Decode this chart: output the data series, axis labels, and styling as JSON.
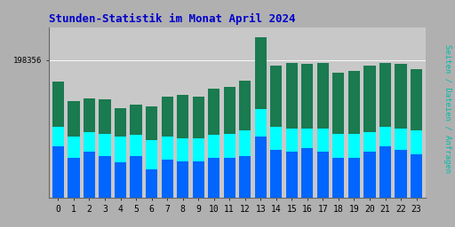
{
  "title": "Stunden-Statistik im Monat April 2024",
  "ylabel_right": "Seiten / Dateien / Anfragen",
  "ytick_label": "198356",
  "hours": [
    0,
    1,
    2,
    3,
    4,
    5,
    6,
    7,
    8,
    9,
    10,
    11,
    12,
    13,
    14,
    15,
    16,
    17,
    18,
    19,
    20,
    21,
    22,
    23
  ],
  "seiten": [
    0.72,
    0.6,
    0.62,
    0.61,
    0.56,
    0.58,
    0.57,
    0.63,
    0.64,
    0.63,
    0.68,
    0.69,
    0.73,
    1.0,
    0.82,
    0.84,
    0.83,
    0.84,
    0.78,
    0.79,
    0.82,
    0.84,
    0.83,
    0.8
  ],
  "dateien": [
    0.44,
    0.38,
    0.41,
    0.4,
    0.38,
    0.39,
    0.36,
    0.38,
    0.37,
    0.37,
    0.39,
    0.4,
    0.42,
    0.55,
    0.44,
    0.43,
    0.43,
    0.43,
    0.4,
    0.4,
    0.41,
    0.44,
    0.43,
    0.42
  ],
  "anfragen": [
    0.32,
    0.25,
    0.29,
    0.26,
    0.22,
    0.26,
    0.18,
    0.24,
    0.23,
    0.23,
    0.25,
    0.25,
    0.26,
    0.38,
    0.3,
    0.29,
    0.31,
    0.29,
    0.25,
    0.25,
    0.29,
    0.32,
    0.3,
    0.27
  ],
  "color_seiten": "#1a7a50",
  "color_dateien": "#00ffff",
  "color_anfragen": "#0066ff",
  "bg_plot": "#c8c8c8",
  "bg_fig": "#b0b0b0",
  "title_color": "#0000cc",
  "right_label_color": "#00bbaa",
  "bar_width": 0.75,
  "ylim_max": 1.06,
  "ytick_pos": 0.855
}
